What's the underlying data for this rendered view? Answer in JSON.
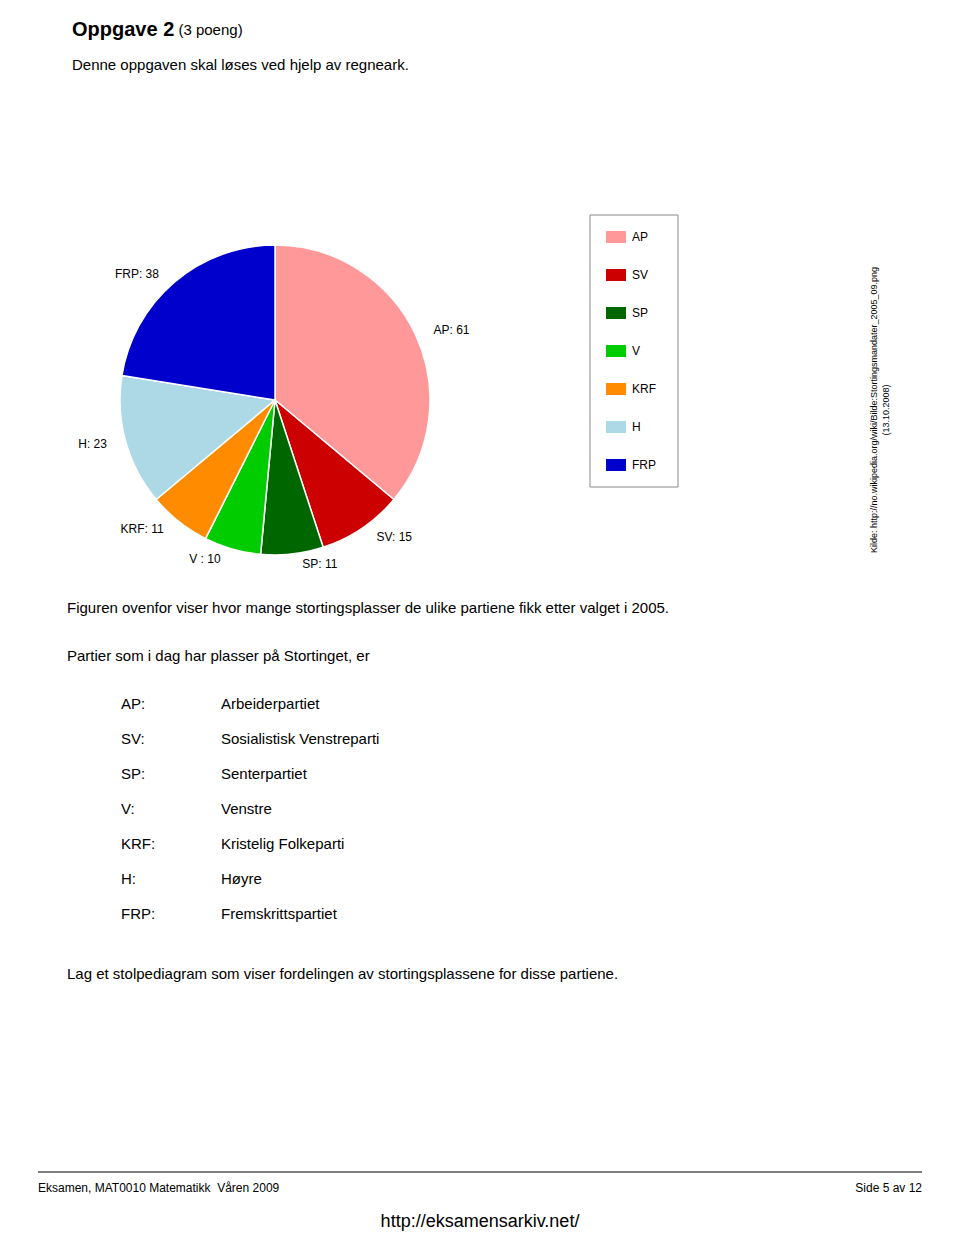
{
  "chart_data": {
    "type": "pie",
    "title": "Oppgave 2",
    "subtitle": "Denne oppgaven skal løses ved hjelp av regneark.",
    "categories": [
      "AP",
      "SV",
      "SP",
      "V",
      "KRF",
      "H",
      "FRP"
    ],
    "values": [
      61,
      15,
      11,
      10,
      11,
      23,
      38
    ],
    "value_labels": [
      "AP: 61",
      "SV: 15",
      "SP: 11",
      "V : 10",
      "KRF: 11",
      "H: 23",
      "FRP: 38"
    ],
    "colors": [
      "#FF9999",
      "#CC0000",
      "#006600",
      "#00CC00",
      "#FF8C00",
      "#ADD8E6",
      "#0000CC"
    ],
    "data_labels": true,
    "legend": "right",
    "annotations": [
      " (3 poeng)",
      "Figuren ovenfor viser hvor mange stortingsplasser de ulike partiene fikk etter valget i 2005.",
      "Partier som i dag har plasser på Stortinget, er",
      [
        "AP:",
        "Arbeiderpartiet"
      ],
      [
        "SV:",
        "Sosialistisk Venstreparti"
      ],
      [
        "SP:",
        "Senterpartiet"
      ],
      [
        "V:",
        "Venstre"
      ],
      [
        "KRF:",
        "Kristelig Folkeparti"
      ],
      [
        "H:",
        "Høyre"
      ],
      [
        "FRP:",
        "Fremskrittspartiet"
      ],
      "Lag et stolpediagram som viser fordelingen av stortingsplassene for disse partiene.",
      "Eksamen, MAT0010 Matematikk  Våren 2009",
      "Side 5 av 12",
      "http://eksamensarkiv.net/",
      "Kilde: http://no.wikipedia.org/wiki/Bilde:Stortingsmandater_2005_09.png\n(13.10.2008)"
    ]
  }
}
